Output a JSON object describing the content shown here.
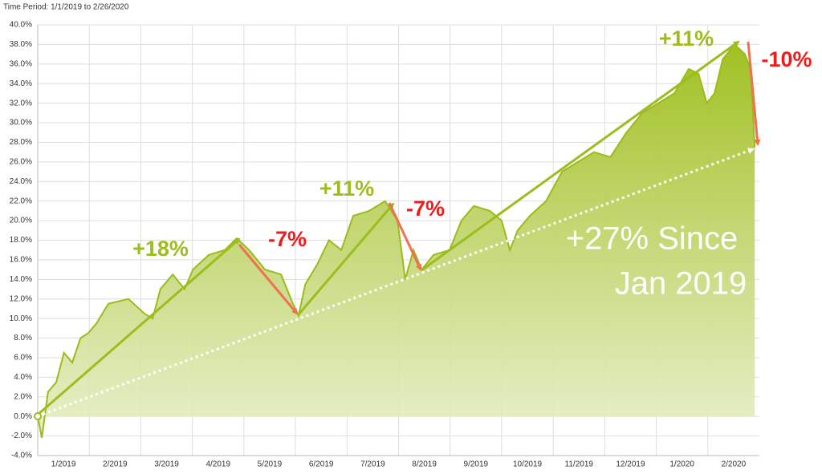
{
  "chart_data": {
    "type": "area",
    "subtitle": "Time Period: 1/1/2019 to 2/26/2020",
    "color": "#9bbb1c",
    "x": [
      0,
      0.08,
      0.2,
      0.36,
      0.51,
      0.67,
      0.83,
      0.98,
      1.14,
      1.37,
      1.76,
      2.07,
      2.23,
      2.38,
      2.62,
      2.85,
      3.01,
      3.32,
      3.63,
      3.86,
      4.1,
      4.41,
      4.72,
      4.95,
      5.06,
      5.19,
      5.42,
      5.65,
      5.89,
      6.12,
      6.43,
      6.74,
      6.98,
      7.13,
      7.29,
      7.45,
      7.68,
      7.99,
      8.22,
      8.46,
      8.77,
      9.0,
      9.16,
      9.31,
      9.55,
      9.86,
      10.17,
      10.48,
      10.79,
      11.11,
      11.42,
      11.73,
      12.04,
      12.35,
      12.63,
      12.82,
      12.98,
      13.13,
      13.29,
      13.52,
      13.72,
      13.83,
      13.91
    ],
    "values": [
      0,
      -2.2,
      2.5,
      3.5,
      6.5,
      5.5,
      8,
      8.5,
      9.5,
      11.5,
      12,
      10.5,
      10,
      13,
      14.5,
      13,
      15,
      16.5,
      17,
      18.2,
      17,
      15,
      14.5,
      11.5,
      10.3,
      13.5,
      15.5,
      18,
      17,
      20.5,
      21,
      22,
      20,
      14,
      17,
      15,
      16.5,
      17,
      20,
      21.5,
      21,
      20,
      17,
      19,
      20.5,
      22,
      25,
      26,
      27,
      26.5,
      29,
      31,
      32,
      33,
      35.5,
      35,
      32,
      33,
      36.5,
      38,
      37,
      35.5,
      27.5
    ],
    "xlim": [
      0,
      14
    ],
    "xticks": [
      {
        "value": 0,
        "label": "1/2019"
      },
      {
        "value": 1,
        "label": "2/2019"
      },
      {
        "value": 2,
        "label": "3/2019"
      },
      {
        "value": 3,
        "label": "4/2019"
      },
      {
        "value": 4,
        "label": "5/2019"
      },
      {
        "value": 5,
        "label": "6/2019"
      },
      {
        "value": 6,
        "label": "7/2019"
      },
      {
        "value": 7,
        "label": "8/2019"
      },
      {
        "value": 8,
        "label": "9/2019"
      },
      {
        "value": 9,
        "label": "10/2019"
      },
      {
        "value": 10,
        "label": "11/2019"
      },
      {
        "value": 11,
        "label": "12/2019"
      },
      {
        "value": 12,
        "label": "1/2020"
      },
      {
        "value": 13,
        "label": "2/2020"
      }
    ],
    "ylim": [
      -4,
      40
    ],
    "yticks": [
      {
        "value": -4,
        "label": "-4.0%"
      },
      {
        "value": -2,
        "label": "-2.0%"
      },
      {
        "value": 0,
        "label": "0.0%"
      },
      {
        "value": 2,
        "label": "2.0%"
      },
      {
        "value": 4,
        "label": "4.0%"
      },
      {
        "value": 6,
        "label": "6.0%"
      },
      {
        "value": 8,
        "label": "8.0%"
      },
      {
        "value": 10,
        "label": "10.0%"
      },
      {
        "value": 12,
        "label": "12.0%"
      },
      {
        "value": 14,
        "label": "14.0%"
      },
      {
        "value": 16,
        "label": "16.0%"
      },
      {
        "value": 18,
        "label": "18.0%"
      },
      {
        "value": 20,
        "label": "20.0%"
      },
      {
        "value": 22,
        "label": "22.0%"
      },
      {
        "value": 24,
        "label": "24.0%"
      },
      {
        "value": 26,
        "label": "26.0%"
      },
      {
        "value": 28,
        "label": "28.0%"
      },
      {
        "value": 30,
        "label": "30.0%"
      },
      {
        "value": 32,
        "label": "32.0%"
      },
      {
        "value": 34,
        "label": "34.0%"
      },
      {
        "value": 36,
        "label": "36.0%"
      },
      {
        "value": 38,
        "label": "38.0%"
      },
      {
        "value": 40,
        "label": "40.0%"
      }
    ],
    "grid": true,
    "annotations": [
      "+18%",
      "-7%",
      "+11%",
      "-7%",
      "+11%",
      "-10%",
      "+27% Since",
      "Jan 2019"
    ]
  }
}
